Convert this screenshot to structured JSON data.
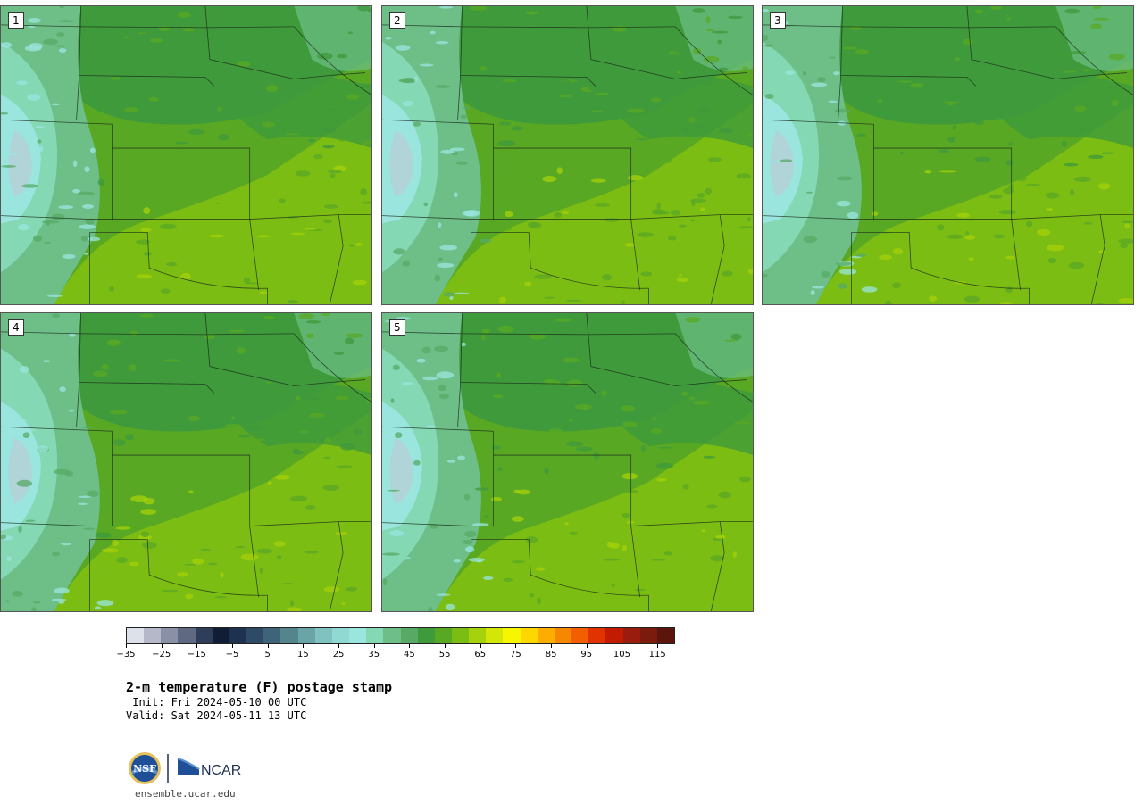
{
  "panels": [
    {
      "label": "1"
    },
    {
      "label": "2"
    },
    {
      "label": "3"
    },
    {
      "label": "4"
    },
    {
      "label": "5"
    }
  ],
  "colorbar": {
    "colors": [
      "#dde1ea",
      "#b5b8c9",
      "#8a90a6",
      "#5f6982",
      "#2e3d5a",
      "#101d35",
      "#1e324f",
      "#2e4a66",
      "#3f6378",
      "#54848c",
      "#6aa4a6",
      "#7fc2c0",
      "#8fd9d2",
      "#9ae6df",
      "#84d8b4",
      "#6dbf87",
      "#58a966",
      "#3f9a3b",
      "#58a824",
      "#7cbd13",
      "#a5d20a",
      "#d4e607",
      "#f6f600",
      "#fed600",
      "#fdad00",
      "#f88700",
      "#f15f00",
      "#e03300",
      "#c11c02",
      "#9a1c0e",
      "#7b1b0d",
      "#5b150d"
    ],
    "tick_values": [
      -35,
      -25,
      -15,
      -5,
      5,
      15,
      25,
      35,
      45,
      55,
      65,
      75,
      85,
      95,
      105,
      115
    ],
    "tick_labels": [
      "−35",
      "−25",
      "−15",
      "−5",
      "5",
      "15",
      "25",
      "35",
      "45",
      "55",
      "65",
      "75",
      "85",
      "95",
      "105",
      "115"
    ],
    "min": -35,
    "max": 120
  },
  "title": "2-m temperature (F) postage stamp",
  "init": " Init: Fri 2024-05-10 00 UTC",
  "valid": "Valid: Sat 2024-05-11 13 UTC",
  "logo": {
    "nsf_text": "NSF",
    "ncar_text": "NCAR"
  },
  "site": "ensemble.ucar.edu"
}
